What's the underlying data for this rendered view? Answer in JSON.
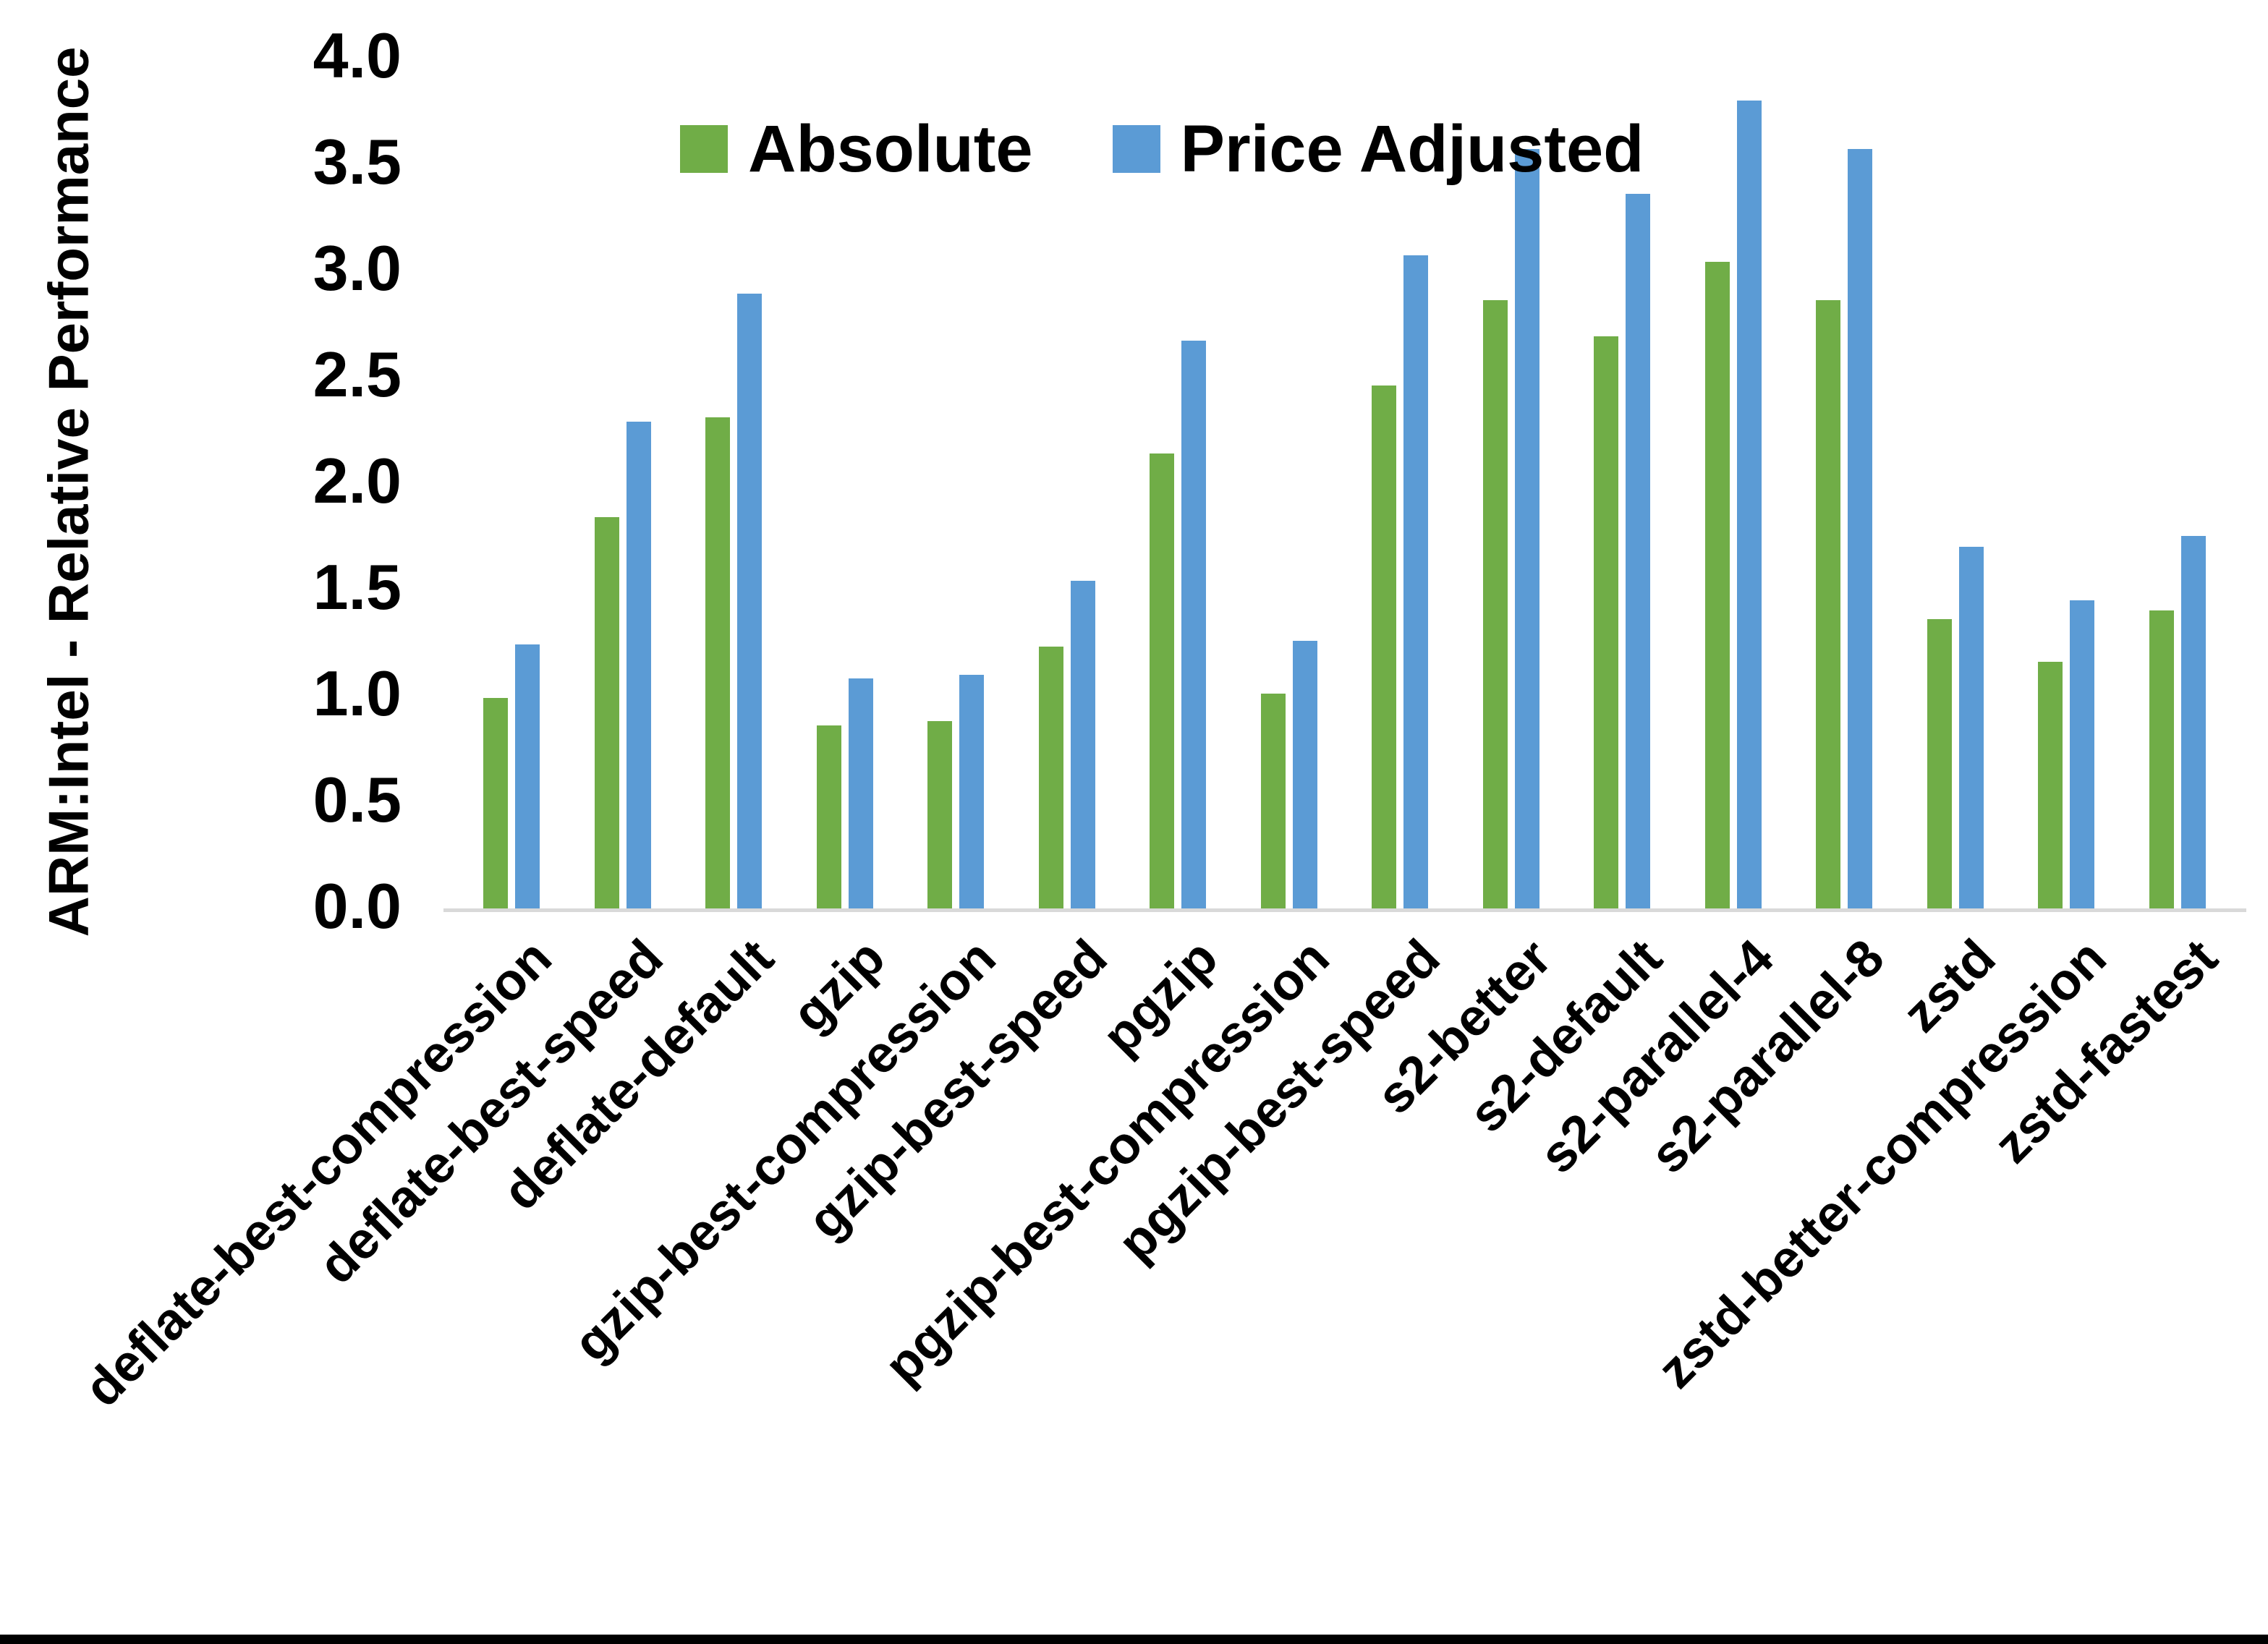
{
  "chart_data": {
    "type": "bar",
    "title": "",
    "xlabel": "",
    "ylabel": "ARM:Intel - Relative Performance",
    "ylim": [
      0.0,
      4.0
    ],
    "ytick_step": 0.5,
    "ytick_labels": [
      "0.0",
      "0.5",
      "1.0",
      "1.5",
      "2.0",
      "2.5",
      "3.0",
      "3.5",
      "4.0"
    ],
    "grid": false,
    "legend_position": "top-center",
    "axis_line_color": "#d9d9d9",
    "categories": [
      "deflate-best-compression",
      "deflate-best-speed",
      "deflate-default",
      "gzip",
      "gzip-best-compression",
      "gzip-best-speed",
      "pgzip",
      "pgzip-best-compression",
      "pgzip-best-speed",
      "s2-better",
      "s2-default",
      "s2-parallel-4",
      "s2-parallel-8",
      "zstd",
      "zstd-better-compression",
      "zstd-fastest"
    ],
    "series": [
      {
        "name": "Absolute",
        "color": "#70ad47",
        "values": [
          0.99,
          1.84,
          2.31,
          0.86,
          0.88,
          1.23,
          2.14,
          1.01,
          2.46,
          2.86,
          2.69,
          3.04,
          2.86,
          1.36,
          1.16,
          1.4
        ]
      },
      {
        "name": "Price Adjusted",
        "color": "#5b9bd5",
        "values": [
          1.24,
          2.29,
          2.89,
          1.08,
          1.1,
          1.54,
          2.67,
          1.26,
          3.07,
          3.57,
          3.36,
          3.8,
          3.57,
          1.7,
          1.45,
          1.75
        ]
      }
    ]
  }
}
